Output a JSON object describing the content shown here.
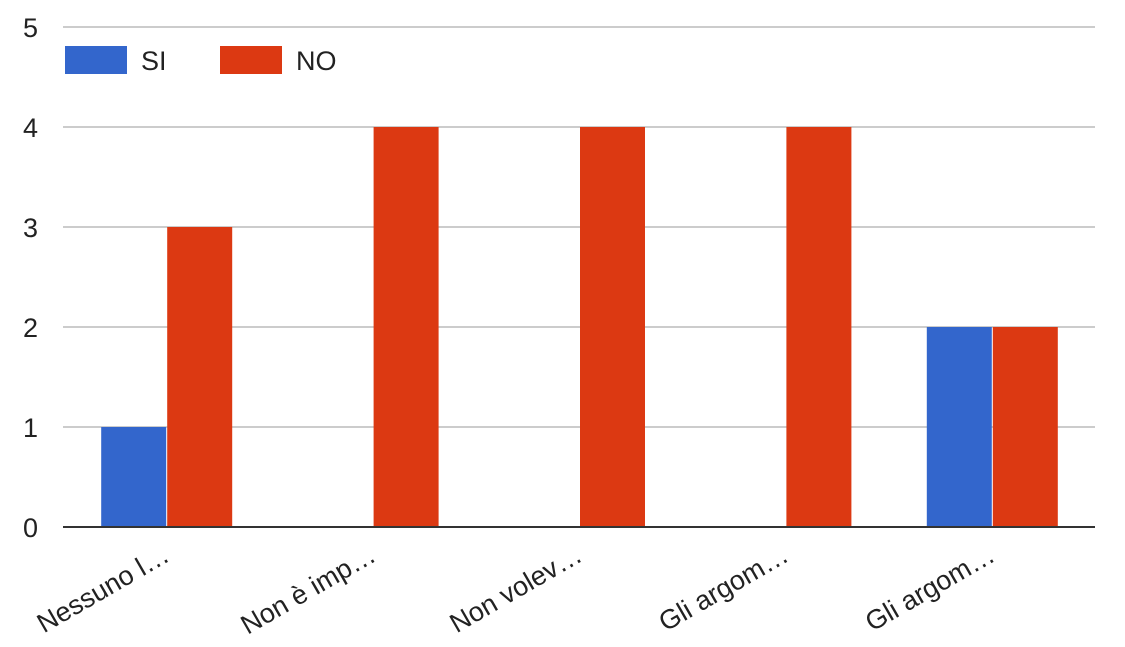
{
  "chart_data": {
    "type": "bar",
    "title": "",
    "xlabel": "",
    "ylabel": "",
    "categories": [
      "Nessuno l…",
      "Non è imp…",
      "Non volev…",
      "Gli argom…",
      "Gli argom…"
    ],
    "series": [
      {
        "name": "SI",
        "color": "#3366cc",
        "values": [
          1,
          0,
          0,
          0,
          2
        ]
      },
      {
        "name": "NO",
        "color": "#dc3912",
        "values": [
          3,
          4,
          4,
          4,
          2
        ]
      }
    ],
    "ylim": [
      0,
      5
    ],
    "yticks": [
      "0",
      "1",
      "2",
      "3",
      "4",
      "5"
    ],
    "grid": true,
    "legend_position": "top-left"
  }
}
